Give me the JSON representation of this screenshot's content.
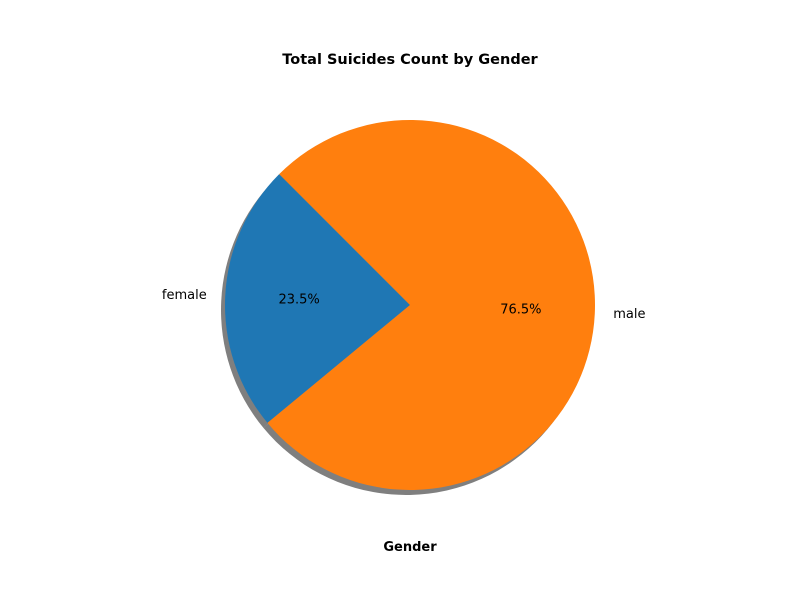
{
  "chart_data": {
    "type": "pie",
    "title": "Total Suicides Count by Gender",
    "xlabel": "Gender",
    "ylabel": "",
    "shadow": true,
    "start_angle_deg": 135,
    "slices": [
      {
        "label": "female",
        "percent": 23.5,
        "percent_label": "23.5%",
        "color": "#1f77b4"
      },
      {
        "label": "male",
        "percent": 76.5,
        "percent_label": "76.5%",
        "color": "#ff7f0e"
      }
    ]
  }
}
